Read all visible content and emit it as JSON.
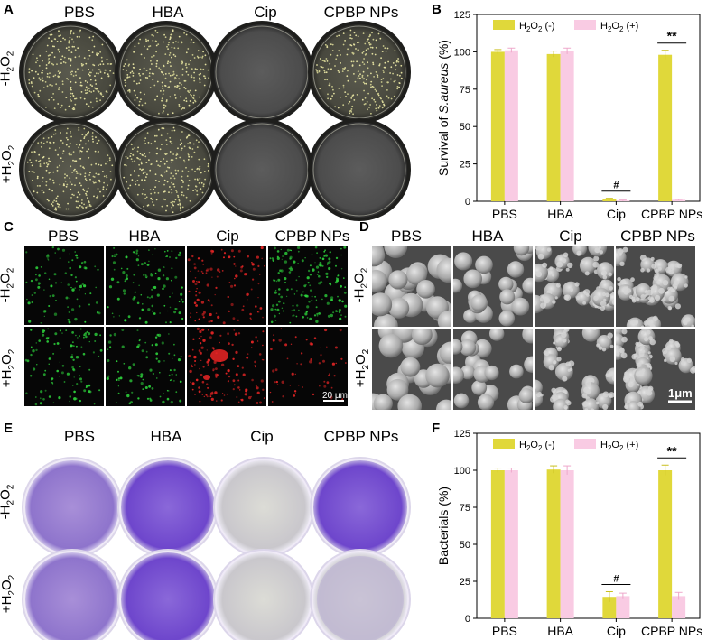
{
  "panels": {
    "A": {
      "label": "A",
      "columns": [
        "PBS",
        "HBA",
        "Cip",
        "CPBP NPs"
      ],
      "rows": [
        {
          "label_main": "-H",
          "sub1": "2",
          "mid": "O",
          "sub2": "2"
        },
        {
          "label_main": "+H",
          "sub1": "2",
          "mid": "O",
          "sub2": "2"
        }
      ]
    },
    "B": {
      "label": "B"
    },
    "C": {
      "label": "C",
      "columns": [
        "PBS",
        "HBA",
        "Cip",
        "CPBP NPs"
      ],
      "scalebar": "20 μm"
    },
    "D": {
      "label": "D",
      "columns": [
        "PBS",
        "HBA",
        "Cip",
        "CPBP NPs"
      ],
      "scalebar": "1μm"
    },
    "E": {
      "label": "E",
      "columns": [
        "PBS",
        "HBA",
        "Cip",
        "CPBP NPs"
      ]
    },
    "F": {
      "label": "F"
    }
  },
  "chart_data": [
    {
      "type": "bar",
      "panel": "B",
      "categories": [
        "PBS",
        "HBA",
        "Cip",
        "CPBP NPs"
      ],
      "series": [
        {
          "name": "H2O2 (-)",
          "values": [
            100,
            98.5,
            1.5,
            98
          ],
          "errors": [
            1.5,
            2,
            0.5,
            3
          ],
          "color": "#e0d83a"
        },
        {
          "name": "H2O2 (+)",
          "values": [
            101,
            100.5,
            0.5,
            1
          ],
          "errors": [
            1.5,
            2,
            0.3,
            0.3
          ],
          "color": "#f9cbe3"
        }
      ],
      "ylabel_pre": "Survival of ",
      "ylabel_italic": "S.aureus",
      "ylabel_post": " (%)",
      "yticks": [
        0,
        25,
        50,
        75,
        100,
        125
      ],
      "ylim": [
        0,
        125
      ],
      "legend": [
        {
          "pre": "H",
          "sub": "2",
          "mid": "O",
          "sub2": "2",
          "post": " (-)"
        },
        {
          "pre": "H",
          "sub": "2",
          "mid": "O",
          "sub2": "2",
          "post": " (+)"
        }
      ],
      "annotations": [
        {
          "text": "#",
          "category": "Cip"
        },
        {
          "text": "**",
          "category": "CPBP NPs"
        }
      ]
    },
    {
      "type": "bar",
      "panel": "F",
      "categories": [
        "PBS",
        "HBA",
        "Cip",
        "CPBP NPs"
      ],
      "series": [
        {
          "name": "H2O2 (-)",
          "values": [
            100,
            100.5,
            14.5,
            100
          ],
          "errors": [
            1.5,
            2.5,
            3.5,
            3.5
          ],
          "color": "#e0d83a"
        },
        {
          "name": "H2O2 (+)",
          "values": [
            100,
            100,
            15,
            15
          ],
          "errors": [
            1.5,
            3,
            2,
            2.5
          ],
          "color": "#f9cbe3"
        }
      ],
      "ylabel_pre": "Bacterials (%)",
      "ylabel_italic": "",
      "ylabel_post": "",
      "yticks": [
        0,
        25,
        50,
        75,
        100,
        125
      ],
      "ylim": [
        0,
        125
      ],
      "legend": [
        {
          "pre": "H",
          "sub": "2",
          "mid": "O",
          "sub2": "2",
          "post": " (-)"
        },
        {
          "pre": "H",
          "sub": "2",
          "mid": "O",
          "sub2": "2",
          "post": " (+)"
        }
      ],
      "annotations": [
        {
          "text": "#",
          "category": "Cip"
        },
        {
          "text": "**",
          "category": "CPBP NPs"
        }
      ]
    }
  ],
  "colors": {
    "bar_minus": "#e0d83a",
    "bar_plus": "#f9cbe3",
    "fluor_green": "#2ccc3a",
    "fluor_red": "#e02424",
    "crystal_violet": "#6a3fc4",
    "sem_gray": "#b8b8b8"
  }
}
